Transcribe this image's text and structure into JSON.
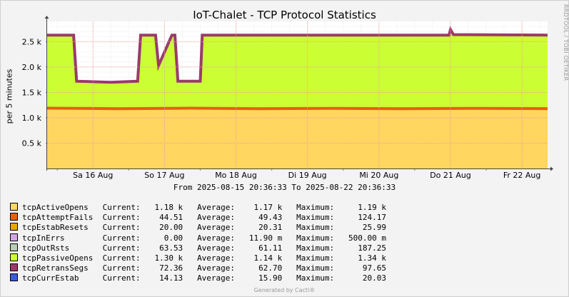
{
  "chart_data": {
    "type": "area",
    "title": "IoT-Chalet - TCP Protocol Statistics",
    "ylabel": "per 5 minutes",
    "xlabel": "",
    "ylim": [
      0,
      2900
    ],
    "y_ticks": [
      {
        "value": 500,
        "label": "0.5 k"
      },
      {
        "value": 1000,
        "label": "1.0 k"
      },
      {
        "value": 1500,
        "label": "1.5 k"
      },
      {
        "value": 2000,
        "label": "2.0 k"
      },
      {
        "value": 2500,
        "label": "2.5 k"
      }
    ],
    "x_start": "2025-08-15 20:36:33",
    "x_end": "2025-08-22 20:36:33",
    "x_ticks": [
      {
        "time": "2025-08-16 12:00",
        "label": "Sa 16 Aug"
      },
      {
        "time": "2025-08-17 12:00",
        "label": "So 17 Aug"
      },
      {
        "time": "2025-08-18 12:00",
        "label": "Mo 18 Aug"
      },
      {
        "time": "2025-08-19 12:00",
        "label": "Di 19 Aug"
      },
      {
        "time": "2025-08-20 12:00",
        "label": "Mi 20 Aug"
      },
      {
        "time": "2025-08-21 12:00",
        "label": "Do 21 Aug"
      },
      {
        "time": "2025-08-22 12:00",
        "label": "Fr 22 Aug"
      }
    ],
    "grid": true,
    "legend_position": "bottom",
    "base_series": {
      "name": "tcpActiveOpens",
      "color": "#ffd660",
      "points": [
        [
          "2025-08-15 20:36",
          1190
        ],
        [
          "2025-08-16 20:36",
          1180
        ],
        [
          "2025-08-17 20:36",
          1190
        ],
        [
          "2025-08-18 20:36",
          1180
        ],
        [
          "2025-08-19 20:36",
          1185
        ],
        [
          "2025-08-20 20:36",
          1180
        ],
        [
          "2025-08-21 20:36",
          1185
        ],
        [
          "2025-08-22 20:36",
          1180
        ]
      ]
    },
    "stack_series": {
      "name": "tcpPassiveOpens",
      "color": "#ccff33",
      "points": [
        [
          "2025-08-15 20:36",
          2630
        ],
        [
          "2025-08-16 05:30",
          2630
        ],
        [
          "2025-08-16 06:30",
          1720
        ],
        [
          "2025-08-16 18:00",
          1700
        ],
        [
          "2025-08-17 03:00",
          1720
        ],
        [
          "2025-08-17 04:00",
          2630
        ],
        [
          "2025-08-17 09:00",
          2630
        ],
        [
          "2025-08-17 10:00",
          2030
        ],
        [
          "2025-08-17 14:30",
          2630
        ],
        [
          "2025-08-17 15:30",
          2630
        ],
        [
          "2025-08-17 16:30",
          1720
        ],
        [
          "2025-08-18 00:00",
          1720
        ],
        [
          "2025-08-18 00:40",
          2630
        ],
        [
          "2025-08-20 20:36",
          2630
        ],
        [
          "2025-08-21 11:30",
          2630
        ],
        [
          "2025-08-21 12:00",
          2740
        ],
        [
          "2025-08-21 13:00",
          2640
        ],
        [
          "2025-08-22 20:36",
          2630
        ]
      ]
    },
    "series": [
      {
        "name": "tcpActiveOpens",
        "color": "#ffd660",
        "current": "1.18 k",
        "average": "1.17 k",
        "maximum": "1.19 k"
      },
      {
        "name": "tcpAttemptFails",
        "color": "#ea5f0d",
        "current": "44.51",
        "average": "49.43",
        "maximum": "124.17"
      },
      {
        "name": "tcpEstabResets",
        "color": "#e6a800",
        "current": "20.00",
        "average": "20.31",
        "maximum": "25.99"
      },
      {
        "name": "tcpInErrs",
        "color": "#d5a6e6",
        "current": "0.00",
        "average": "11.90 m",
        "maximum": "500.00 m"
      },
      {
        "name": "tcpOutRsts",
        "color": "#b8ccb8",
        "current": "63.53",
        "average": "61.11",
        "maximum": "187.25"
      },
      {
        "name": "tcpPassiveOpens",
        "color": "#ccff33",
        "current": "1.30 k",
        "average": "1.14 k",
        "maximum": "1.34 k"
      },
      {
        "name": "tcpRetransSegs",
        "color": "#9b3a6b",
        "current": "72.36",
        "average": "62.70",
        "maximum": "97.65"
      },
      {
        "name": "tcpCurrEstab",
        "color": "#3b5bdb",
        "current": "14.13",
        "average": "15.90",
        "maximum": "20.03"
      }
    ]
  },
  "legend_labels": {
    "current": "Current:",
    "average": "Average:",
    "maximum": "Maximum:"
  },
  "range_text": "From 2025-08-15 20:36:33 To 2025-08-22 20:36:33",
  "watermark": "RRDTOOL / TOBI OETIKER",
  "footer": "Generated by Cacti®"
}
